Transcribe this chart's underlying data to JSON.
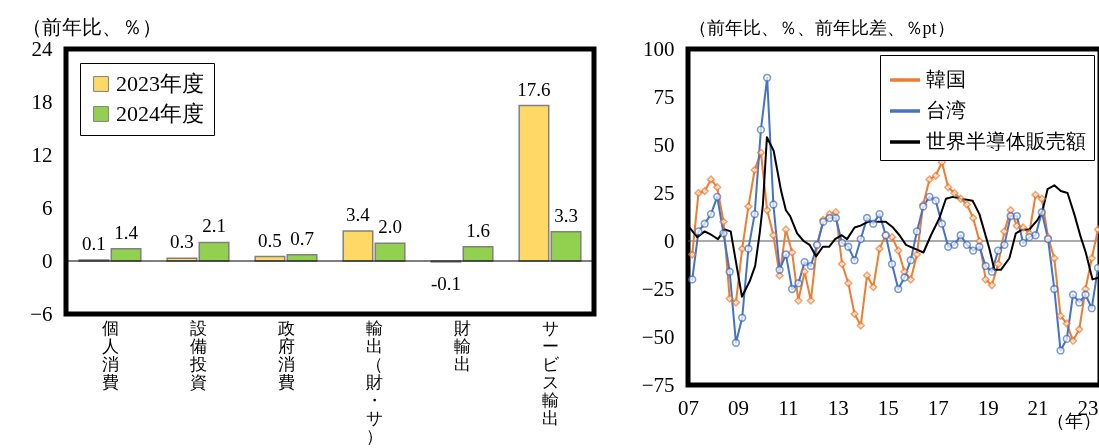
{
  "chart_data": [
    {
      "type": "bar",
      "ylabel": "（前年比、％）",
      "categories": [
        "個人消費",
        "設備投資",
        "政府消費",
        "輸出（財・サ）",
        "財輸出",
        "サービス輸出"
      ],
      "series": [
        {
          "name": "2023年度",
          "color": "#ffd966",
          "values": [
            0.1,
            0.3,
            0.5,
            3.4,
            -0.1,
            17.6
          ],
          "value_labels": [
            "0.1",
            "0.3",
            "0.5",
            "3.4",
            "-0.1",
            "17.6"
          ]
        },
        {
          "name": "2024年度",
          "color": "#92d050",
          "values": [
            1.4,
            2.1,
            0.7,
            2.0,
            1.6,
            3.3
          ],
          "value_labels": [
            "1.4",
            "2.1",
            "0.7",
            "2.0",
            "1.6",
            "3.3"
          ]
        }
      ],
      "ylim": [
        -6,
        24
      ],
      "yticks": [
        -6,
        0,
        6,
        12,
        18,
        24
      ],
      "legend": "top left",
      "grid": false,
      "ref_lines": [
        {
          "axis": "y",
          "value": 0,
          "color": "#000000"
        }
      ]
    },
    {
      "type": "line",
      "ylabel": "（前年比、％、前年比差、％pt）",
      "xlabel": "（年）",
      "series": [
        {
          "name": "韓国",
          "color": "#ed7d31",
          "marker": "diamond",
          "x": [
            7.17,
            7.42,
            7.67,
            7.92,
            8.17,
            8.42,
            8.67,
            8.92,
            9.17,
            9.42,
            9.67,
            9.92,
            10.17,
            10.42,
            10.67,
            10.92,
            11.17,
            11.42,
            11.67,
            11.92,
            12.17,
            12.42,
            12.67,
            12.92,
            13.17,
            13.42,
            13.67,
            13.92,
            14.17,
            14.42,
            14.67,
            14.92,
            15.17,
            15.42,
            15.67,
            15.92,
            16.17,
            16.42,
            16.67,
            16.92,
            17.17,
            17.42,
            17.67,
            17.92,
            18.17,
            18.42,
            18.67,
            18.92,
            19.17,
            19.42,
            19.67,
            19.92,
            20.17,
            20.42,
            20.67,
            20.92,
            21.17,
            21.42,
            21.67,
            21.92,
            22.17,
            22.42,
            22.67,
            22.92,
            23.17,
            23.42
          ],
          "values": [
            -7,
            25,
            26,
            32,
            28,
            10,
            -30,
            -32,
            -4,
            18,
            37,
            46,
            16,
            3,
            -18,
            6,
            -6,
            -31,
            -16,
            -31,
            -2,
            11,
            14,
            15,
            -12,
            -22,
            -38,
            -44,
            -18,
            -24,
            -4,
            3,
            2,
            -5,
            -16,
            -20,
            -7,
            19,
            32,
            34,
            41,
            28,
            25,
            22,
            19,
            12,
            0,
            -20,
            -23,
            -12,
            5,
            16,
            8,
            7,
            4,
            24,
            22,
            2,
            -9,
            -39,
            -43,
            -52,
            -46,
            -25,
            -9,
            6
          ]
        },
        {
          "name": "台湾",
          "color": "#4472c4",
          "marker": "circle",
          "x": [
            7.17,
            7.42,
            7.67,
            7.92,
            8.17,
            8.42,
            8.67,
            8.92,
            9.17,
            9.42,
            9.67,
            9.92,
            10.17,
            10.42,
            10.67,
            10.92,
            11.17,
            11.42,
            11.67,
            11.92,
            12.17,
            12.42,
            12.67,
            12.92,
            13.17,
            13.42,
            13.67,
            13.92,
            14.17,
            14.42,
            14.67,
            14.92,
            15.17,
            15.42,
            15.67,
            15.92,
            16.17,
            16.42,
            16.67,
            16.92,
            17.17,
            17.42,
            17.67,
            17.92,
            18.17,
            18.42,
            18.67,
            18.92,
            19.17,
            19.42,
            19.67,
            19.92,
            20.17,
            20.42,
            20.67,
            20.92,
            21.17,
            21.42,
            21.67,
            21.92,
            22.17,
            22.42,
            22.67,
            22.92,
            23.17,
            23.42
          ],
          "values": [
            -20,
            5,
            9,
            14,
            23,
            4,
            -16,
            -53,
            -40,
            -4,
            14,
            58,
            85,
            19,
            -15,
            -7,
            -25,
            -22,
            -11,
            -13,
            -2,
            10,
            12,
            12,
            -1,
            -3,
            -10,
            1,
            12,
            9,
            14,
            3,
            -12,
            -25,
            -19,
            -10,
            5,
            18,
            23,
            21,
            9,
            -3,
            -2,
            3,
            -2,
            -5,
            -3,
            -13,
            -16,
            -5,
            -2,
            13,
            13,
            -1,
            2,
            3,
            15,
            1,
            -25,
            -57,
            -51,
            -28,
            -32,
            -28,
            -35,
            -14
          ]
        },
        {
          "name": "世界半導体販売額",
          "color": "#000000",
          "marker": "none",
          "x": [
            7.0,
            7.37,
            7.67,
            7.96,
            8.2,
            8.47,
            8.71,
            9.16,
            9.47,
            9.69,
            9.87,
            10.0,
            10.16,
            10.43,
            10.73,
            10.92,
            11.09,
            11.37,
            11.63,
            11.87,
            12.13,
            12.4,
            12.65,
            12.89,
            13.16,
            13.37,
            13.67,
            13.91,
            14.2,
            14.6,
            14.92,
            15.21,
            15.47,
            15.73,
            16.07,
            16.43,
            16.73,
            17.07,
            17.33,
            17.6,
            17.93,
            18.4,
            18.67,
            18.87,
            19.07,
            19.27,
            19.53,
            19.87,
            20.13,
            20.4,
            20.67,
            21.0,
            21.2,
            21.4,
            21.67,
            21.93,
            22.2,
            22.47,
            22.73,
            22.93,
            23.2,
            23.47
          ],
          "values": [
            8,
            2,
            5,
            3,
            1,
            6,
            5,
            -29,
            -21,
            -13,
            4,
            19,
            54,
            47,
            26,
            16,
            13,
            4,
            0,
            -2,
            -8,
            -3,
            -3,
            1,
            3,
            1,
            7,
            8,
            10,
            10,
            10,
            7,
            3,
            -2,
            -4,
            -6,
            3,
            12,
            22,
            23,
            22,
            21,
            14,
            5,
            -4,
            -15,
            -15,
            -9,
            4,
            6,
            6,
            11,
            16,
            27,
            29,
            26,
            25,
            14,
            2,
            -6,
            -20,
            -19
          ]
        }
      ],
      "xlim": [
        7,
        23.5
      ],
      "xticks": [
        {
          "value": 7,
          "label": "07"
        },
        {
          "value": 9,
          "label": "09"
        },
        11,
        13,
        15,
        17,
        19,
        21,
        23
      ],
      "ylim": [
        -75,
        100
      ],
      "yticks": [
        -75,
        -50,
        -25,
        0,
        25,
        50,
        75,
        100
      ],
      "legend": "top right",
      "grid": false,
      "ref_lines": [
        {
          "axis": "y",
          "value": 0,
          "color": "#595959"
        }
      ]
    }
  ]
}
